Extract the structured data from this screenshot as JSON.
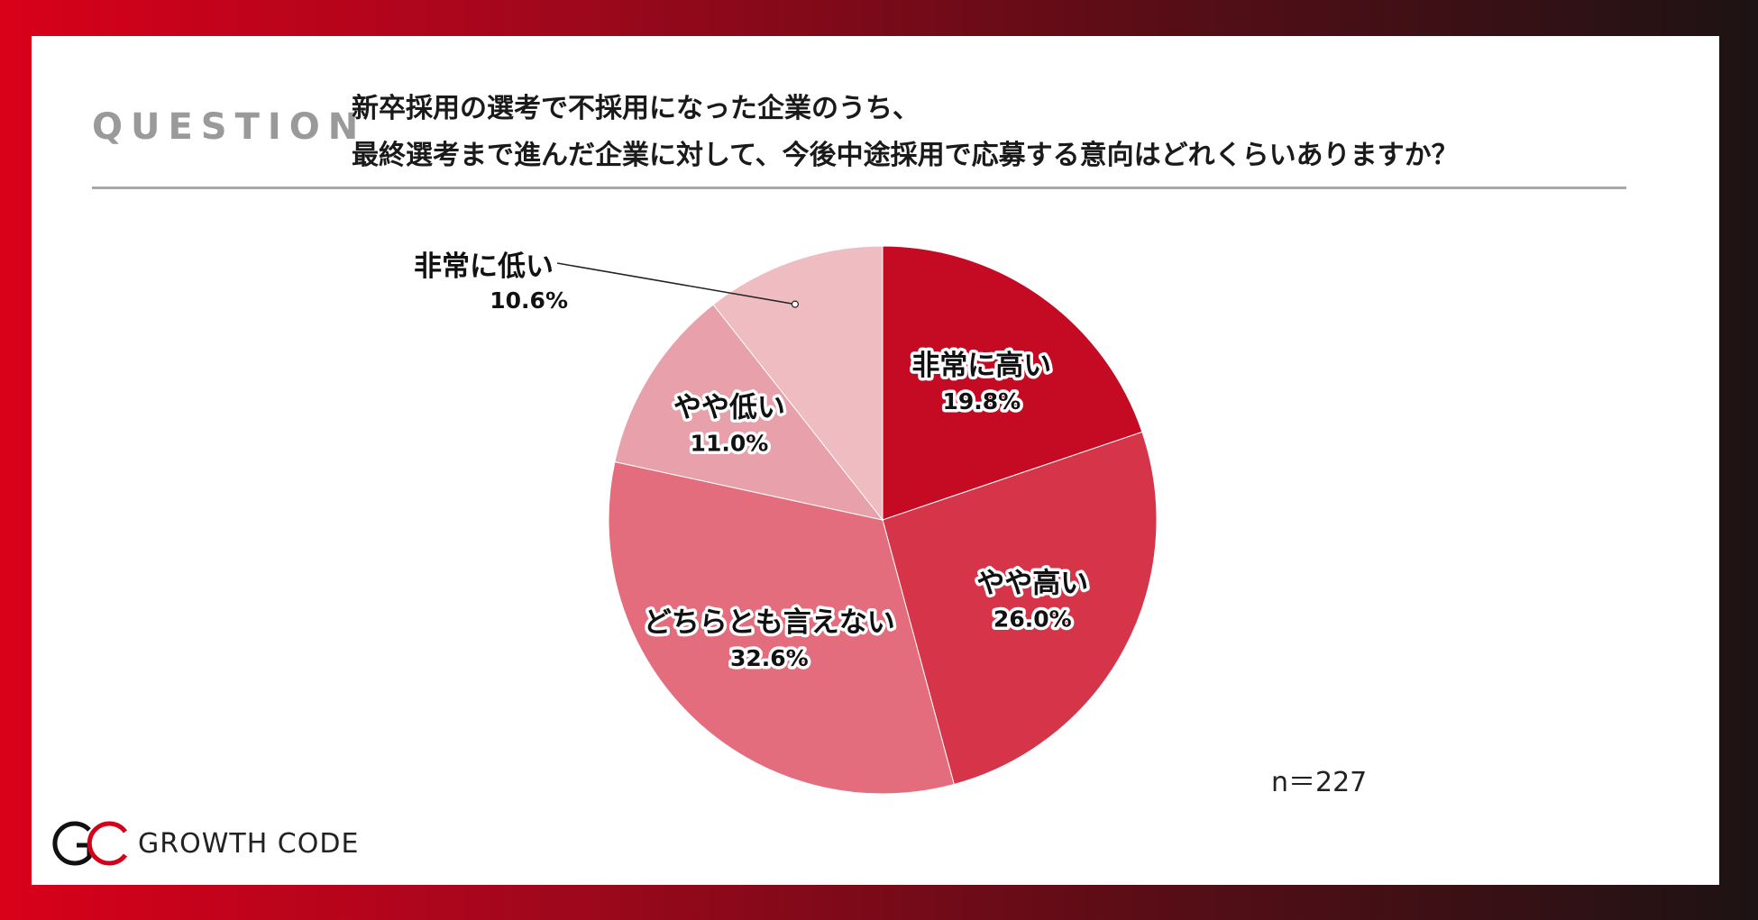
{
  "question": {
    "label": "QUESTION",
    "line1": "新卒採用の選考で不採用になった企業のうち、",
    "line2": "最終選考まで進んだ企業に対して、今後中途採用で応募する意向はどれくらいありますか？"
  },
  "chart_data": {
    "type": "pie",
    "start_angle_deg": 0,
    "direction": "clockwise",
    "slices": [
      {
        "label": "非常に高い",
        "value": 19.8,
        "value_text": "19.8%",
        "color": "#c50b24"
      },
      {
        "label": "やや高い",
        "value": 26.0,
        "value_text": "26.0%",
        "color": "#d63448"
      },
      {
        "label": "どちらとも言えない",
        "value": 32.6,
        "value_text": "32.6%",
        "color": "#e36d7c"
      },
      {
        "label": "やや低い",
        "value": 11.0,
        "value_text": "11.0%",
        "color": "#e8a0aa"
      },
      {
        "label": "非常に低い",
        "value": 10.6,
        "value_text": "10.6%",
        "color": "#efbcc2"
      }
    ]
  },
  "sample_size": "n＝227",
  "logo": {
    "text": "GROWTH CODE",
    "mark_icon": "gc-logo-icon",
    "accent_color": "#d4001a"
  }
}
